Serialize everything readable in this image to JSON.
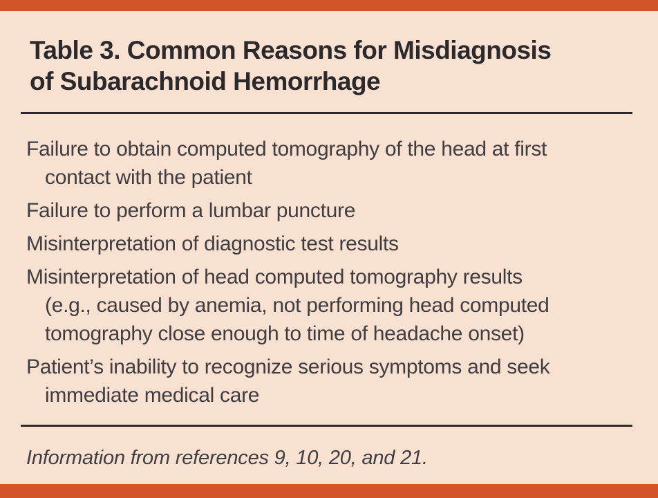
{
  "table": {
    "title": "Table 3. Common Reasons for Misdiagnosis\nof Subarachnoid Hemorrhage",
    "reasons": [
      "Failure to obtain computed tomography of the head at first\ncontact with the patient",
      "Failure to perform a lumbar puncture",
      "Misinterpretation of diagnostic test results",
      "Misinterpretation of head computed tomography results\n(e.g., caused by anemia, not performing head computed\ntomography close enough to time of headache onset)",
      "Patient’s inability to recognize serious symptoms and seek\nimmediate medical care"
    ],
    "source_note": "Information from references 9, 10, 20, and 21.",
    "colors": {
      "accent": "#d2552a",
      "background": "#f9e1d2",
      "title_text": "#2b292b",
      "body_text": "#3f3d40",
      "rule": "#2b292b"
    }
  }
}
